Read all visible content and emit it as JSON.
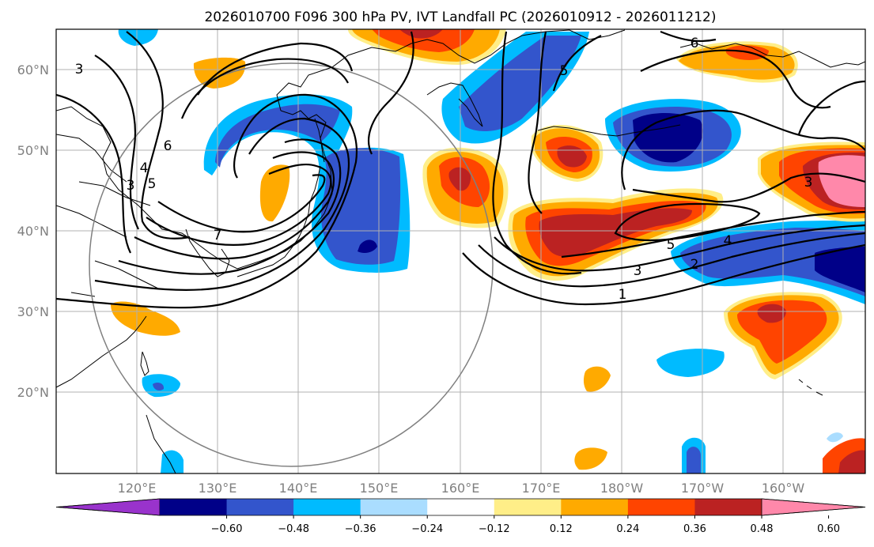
{
  "title": "2026010700 F096 300 hPa PV, IVT Landfall PC (2026010912 - 2026011212)",
  "lat_labels": [
    "60°N",
    "50°N",
    "40°N",
    "30°N",
    "20°N"
  ],
  "lon_labels": [
    "120°E",
    "130°E",
    "140°E",
    "150°E",
    "160°E",
    "170°E",
    "180°W",
    "170°W",
    "160°W"
  ],
  "colorbar": {
    "colors": [
      "#9933cc",
      "#000088",
      "#3355cc",
      "#00bbff",
      "#aaddff",
      "#ffffff",
      "#ffee88",
      "#ffaa00",
      "#ff4400",
      "#bb2222",
      "#ff88aa"
    ],
    "tick_labels": [
      "−0.60",
      "−0.48",
      "−0.36",
      "−0.24",
      "−0.12",
      "0.12",
      "0.24",
      "0.36",
      "0.48",
      "0.60"
    ]
  },
  "contour_labels": [
    "3",
    "3",
    "4",
    "5",
    "6",
    "7",
    "5",
    "6",
    "1",
    "2",
    "3",
    "4",
    "5",
    "3"
  ],
  "colors": {
    "grid": "#b0b0b0",
    "coast": "#000000",
    "contour": "#000000",
    "circle": "#808080",
    "axis_label": "#808080"
  }
}
